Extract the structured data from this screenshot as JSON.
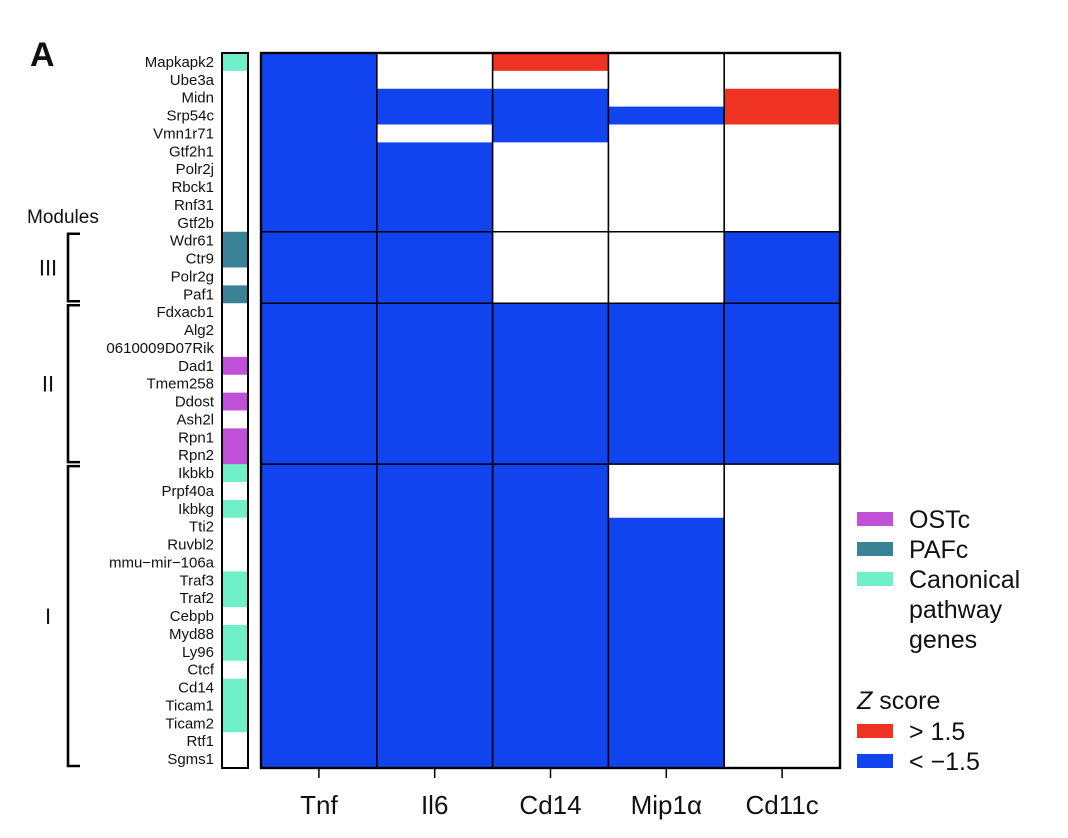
{
  "panel_label": "A",
  "chart_data": {
    "type": "heatmap",
    "columns": [
      "Tnf",
      "Il6",
      "Cd14",
      "Mip1α",
      "Cd11c"
    ],
    "rows": [
      "Mapkapk2",
      "Ube3a",
      "Midn",
      "Srp54c",
      "Vmn1r71",
      "Gtf2h1",
      "Polr2j",
      "Rbck1",
      "Rnf31",
      "Gtf2b",
      "Wdr61",
      "Ctr9",
      "Polr2g",
      "Paf1",
      "Fdxacb1",
      "Alg2",
      "0610009D07Rik",
      "Dad1",
      "Tmem258",
      "Ddost",
      "Ash2l",
      "Rpn1",
      "Rpn2",
      "Ikbkb",
      "Prpf40a",
      "Ikbkg",
      "Tti2",
      "Ruvbl2",
      "mmu−mir−106a",
      "Traf3",
      "Traf2",
      "Cebpb",
      "Myd88",
      "Ly96",
      "Ctcf",
      "Cd14",
      "Ticam1",
      "Ticam2",
      "Rtf1",
      "Sgms1"
    ],
    "row_annotation": [
      "Canonical",
      "",
      "",
      "",
      "",
      "",
      "",
      "",
      "",
      "",
      "PAFc",
      "PAFc",
      "",
      "PAFc",
      "",
      "",
      "",
      "OSTc",
      "",
      "OSTc",
      "",
      "OSTc",
      "OSTc",
      "Canonical",
      "",
      "Canonical",
      "",
      "",
      "",
      "Canonical",
      "Canonical",
      "",
      "Canonical",
      "Canonical",
      "",
      "Canonical",
      "Canonical",
      "Canonical",
      "",
      ""
    ],
    "z_category": [
      [
        -1,
        0,
        1,
        0,
        0
      ],
      [
        -1,
        0,
        0,
        0,
        0
      ],
      [
        -1,
        -1,
        -1,
        0,
        1
      ],
      [
        -1,
        -1,
        -1,
        -1,
        1
      ],
      [
        -1,
        0,
        -1,
        0,
        0
      ],
      [
        -1,
        -1,
        0,
        0,
        0
      ],
      [
        -1,
        -1,
        0,
        0,
        0
      ],
      [
        -1,
        -1,
        0,
        0,
        0
      ],
      [
        -1,
        -1,
        0,
        0,
        0
      ],
      [
        -1,
        -1,
        0,
        0,
        0
      ],
      [
        -1,
        -1,
        0,
        0,
        -1
      ],
      [
        -1,
        -1,
        0,
        0,
        -1
      ],
      [
        -1,
        -1,
        0,
        0,
        -1
      ],
      [
        -1,
        -1,
        0,
        0,
        -1
      ],
      [
        -1,
        -1,
        -1,
        -1,
        -1
      ],
      [
        -1,
        -1,
        -1,
        -1,
        -1
      ],
      [
        -1,
        -1,
        -1,
        -1,
        -1
      ],
      [
        -1,
        -1,
        -1,
        -1,
        -1
      ],
      [
        -1,
        -1,
        -1,
        -1,
        -1
      ],
      [
        -1,
        -1,
        -1,
        -1,
        -1
      ],
      [
        -1,
        -1,
        -1,
        -1,
        -1
      ],
      [
        -1,
        -1,
        -1,
        -1,
        -1
      ],
      [
        -1,
        -1,
        -1,
        -1,
        -1
      ],
      [
        -1,
        -1,
        -1,
        0,
        0
      ],
      [
        -1,
        -1,
        -1,
        0,
        0
      ],
      [
        -1,
        -1,
        -1,
        0,
        0
      ],
      [
        -1,
        -1,
        -1,
        -1,
        0
      ],
      [
        -1,
        -1,
        -1,
        -1,
        0
      ],
      [
        -1,
        -1,
        -1,
        -1,
        0
      ],
      [
        -1,
        -1,
        -1,
        -1,
        0
      ],
      [
        -1,
        -1,
        -1,
        -1,
        0
      ],
      [
        -1,
        -1,
        -1,
        -1,
        0
      ],
      [
        -1,
        -1,
        -1,
        -1,
        0
      ],
      [
        -1,
        -1,
        -1,
        -1,
        0
      ],
      [
        -1,
        -1,
        -1,
        -1,
        0
      ],
      [
        -1,
        -1,
        -1,
        -1,
        0
      ],
      [
        -1,
        -1,
        -1,
        -1,
        0
      ],
      [
        -1,
        -1,
        -1,
        -1,
        0
      ],
      [
        -1,
        -1,
        -1,
        -1,
        0
      ],
      [
        -1,
        -1,
        -1,
        -1,
        0
      ]
    ],
    "modules_title": "Modules",
    "modules": [
      {
        "name": "III",
        "first_row": 10,
        "last_row": 13
      },
      {
        "name": "II",
        "first_row": 14,
        "last_row": 22
      },
      {
        "name": "I",
        "first_row": 23,
        "last_row": 39
      }
    ],
    "legend": {
      "annotation_entries": [
        {
          "key": "OSTc",
          "lines": [
            "OSTc"
          ],
          "color": "#c050d8"
        },
        {
          "key": "PAFc",
          "lines": [
            "PAFc"
          ],
          "color": "#3a8296"
        },
        {
          "key": "Canonical",
          "lines": [
            "Canonical",
            "pathway",
            "genes"
          ],
          "color": "#70f0c8"
        }
      ],
      "z_title_italic": "Z",
      "z_title_rest": " score",
      "z_entries": [
        {
          "label": "> 1.5",
          "color": "#ee3322"
        },
        {
          "label": "< −1.5",
          "color": "#1144ee"
        }
      ]
    },
    "colors": {
      "high": "#ee3322",
      "low": "#1144ee",
      "neutral": "#ffffff",
      "grid": "#000000"
    }
  }
}
